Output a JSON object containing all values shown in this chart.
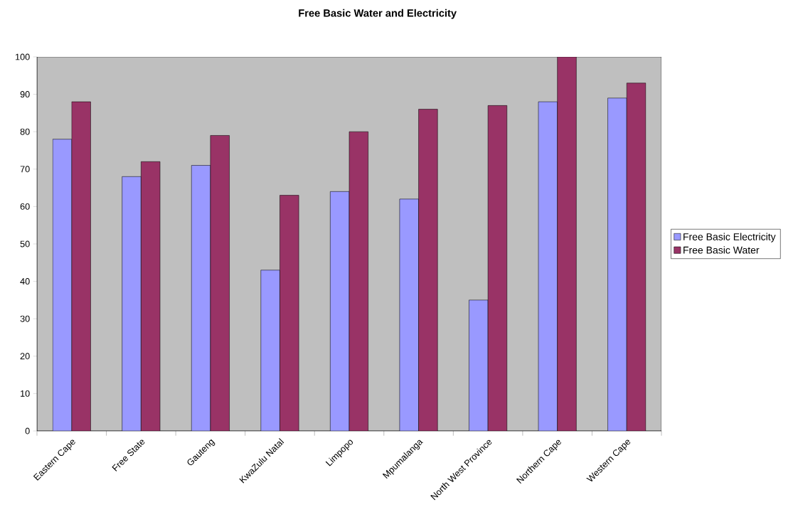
{
  "chart_data": {
    "type": "bar",
    "title": "Free Basic Water and Electricity",
    "categories": [
      "Eastern Cape",
      "Free State",
      "Gauteng",
      "KwaZulu Natal",
      "Limpopo",
      "Mpumalanga",
      "North West Province",
      "Northern Cape",
      "Western Cape"
    ],
    "series": [
      {
        "name": "Free Basic Electricity",
        "color": "#9999ff",
        "values": [
          78,
          68,
          71,
          43,
          64,
          62,
          35,
          88,
          89
        ]
      },
      {
        "name": "Free Basic Water",
        "color": "#993366",
        "values": [
          88,
          72,
          79,
          63,
          80,
          86,
          87,
          100,
          93
        ]
      }
    ],
    "ylim": [
      0,
      100
    ],
    "yticks": [
      0,
      10,
      20,
      30,
      40,
      50,
      60,
      70,
      80,
      90,
      100
    ],
    "grid": false,
    "legend": "right"
  }
}
